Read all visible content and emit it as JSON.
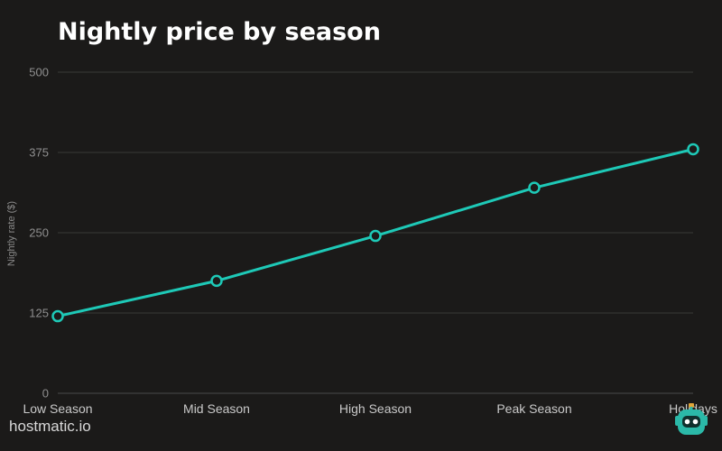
{
  "chart_data": {
    "type": "line",
    "title": "Nightly price by season",
    "ylabel": "Nightly rate ($)",
    "xlabel": "",
    "categories": [
      "Low Season",
      "Mid Season",
      "High Season",
      "Peak Season",
      "Holidays"
    ],
    "series": [
      {
        "values": [
          120,
          175,
          245,
          320,
          380
        ]
      }
    ],
    "ylim": [
      0,
      500
    ],
    "yticks": [
      0,
      125,
      250,
      375,
      500
    ],
    "grid": true,
    "legend": "none",
    "line_color": "#1ec9b7"
  },
  "branding": {
    "site": "hostmatic.io",
    "logo_icon": "robot-icon",
    "logo_color": "#2bb9a8"
  }
}
